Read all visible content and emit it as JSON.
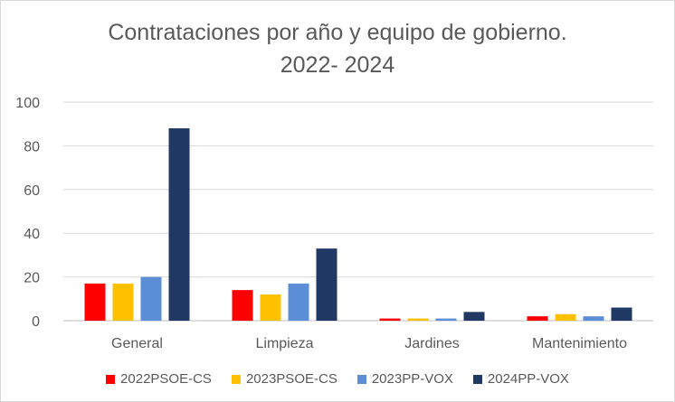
{
  "chart_data": {
    "type": "bar",
    "title_line1": "Contrataciones por año y equipo de gobierno.",
    "title_line2": "2022- 2024",
    "categories": [
      "General",
      "Limpieza",
      "Jardines",
      "Mantenimiento"
    ],
    "series": [
      {
        "name": "2022PSOE-CS",
        "color": "#FF0000",
        "values": [
          17,
          14,
          1,
          2
        ]
      },
      {
        "name": "2023PSOE-CS",
        "color": "#FFC000",
        "values": [
          17,
          12,
          1,
          3
        ]
      },
      {
        "name": "2023PP-VOX",
        "color": "#5B8ED6",
        "values": [
          20,
          17,
          1,
          2
        ]
      },
      {
        "name": "2024PP-VOX",
        "color": "#1F3864",
        "values": [
          88,
          33,
          4,
          6
        ]
      }
    ],
    "yticks": [
      "0",
      "20",
      "40",
      "60",
      "80",
      "100"
    ],
    "ylim": [
      0,
      100
    ],
    "grid": true,
    "legend_position": "bottom"
  }
}
